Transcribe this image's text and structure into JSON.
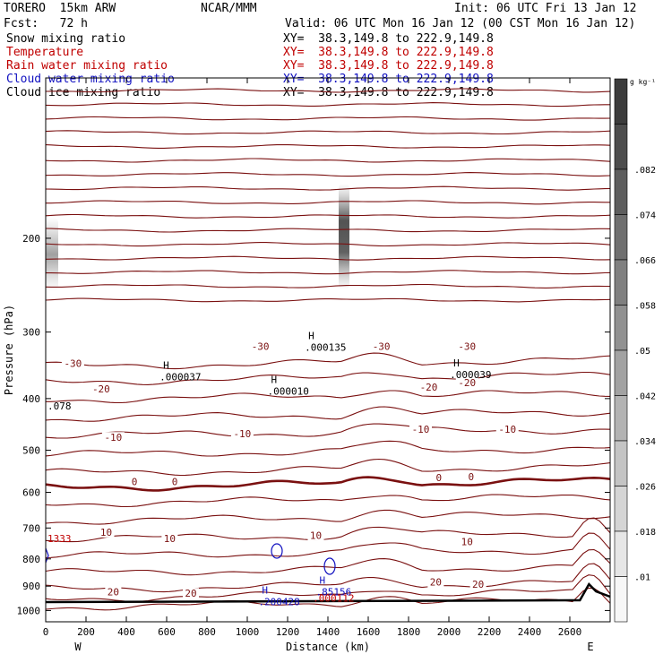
{
  "header": {
    "model": "TORERO  15km ARW",
    "org": "NCAR/MMM",
    "init": "Init: 06 UTC Fri 13 Jan 12",
    "fcst": "Fcst:   72 h",
    "valid": "Valid: 06 UTC Mon 16 Jan 12 (00 CST Mon 16 Jan 12)"
  },
  "fields": [
    {
      "name": "Snow mixing ratio",
      "xy": "XY=  38.3,149.8 to 222.9,149.8",
      "color": "#000000"
    },
    {
      "name": "Temperature",
      "xy": "XY=  38.3,149.8 to 222.9,149.8",
      "color": "#c00000"
    },
    {
      "name": "Rain water mixing ratio",
      "xy": "XY=  38.3,149.8 to 222.9,149.8",
      "color": "#c00000"
    },
    {
      "name": "Cloud water mixing ratio",
      "xy": "XY=  38.3,149.8 to 222.9,149.8",
      "color": "#1010c0"
    },
    {
      "name": "Cloud ice mixing ratio",
      "xy": "XY=  38.3,149.8 to 222.9,149.8",
      "color": "#000000"
    }
  ],
  "chart_data": {
    "type": "contour cross-section",
    "xlabel": "Distance (km)",
    "ylabel": "Pressure (hPa)",
    "xlim": [
      0,
      2800
    ],
    "ylim": [
      1050,
      100
    ],
    "x_ticks": [
      "0",
      "200",
      "400",
      "600",
      "800",
      "1000",
      "1200",
      "1400",
      "1600",
      "1800",
      "2000",
      "2200",
      "2400",
      "2600"
    ],
    "y_ticks": [
      "200",
      "300",
      "400",
      "500",
      "600",
      "700",
      "800",
      "900",
      "1000"
    ],
    "x_end_labels": {
      "left": "W",
      "right": "E"
    },
    "colorbar": {
      "unit": "g kg⁻¹",
      "labels": [
        ".01",
        ".018",
        ".026",
        ".034",
        ".042",
        ".05",
        ".058",
        ".066",
        ".074",
        ".082"
      ]
    },
    "temperature_labels": [
      {
        "text": "-30",
        "x": 135,
        "p": 345
      },
      {
        "text": "-30",
        "x": 1065,
        "p": 320
      },
      {
        "text": "-30",
        "x": 1665,
        "p": 320
      },
      {
        "text": "-30",
        "x": 2090,
        "p": 320
      },
      {
        "text": "-20",
        "x": 275,
        "p": 385
      },
      {
        "text": "-20",
        "x": 1900,
        "p": 382
      },
      {
        "text": "-20",
        "x": 2090,
        "p": 375
      },
      {
        "text": "-10",
        "x": 335,
        "p": 475
      },
      {
        "text": "-10",
        "x": 975,
        "p": 467
      },
      {
        "text": "-10",
        "x": 1860,
        "p": 458
      },
      {
        "text": "-10",
        "x": 2290,
        "p": 458
      },
      {
        "text": "0",
        "x": 440,
        "p": 575
      },
      {
        "text": "0",
        "x": 640,
        "p": 575
      },
      {
        "text": "0",
        "x": 1950,
        "p": 565
      },
      {
        "text": "0",
        "x": 2110,
        "p": 563
      },
      {
        "text": "10",
        "x": 300,
        "p": 715
      },
      {
        "text": "10",
        "x": 615,
        "p": 735
      },
      {
        "text": "10",
        "x": 1340,
        "p": 725
      },
      {
        "text": "10",
        "x": 2090,
        "p": 745
      },
      {
        "text": "20",
        "x": 335,
        "p": 925
      },
      {
        "text": "20",
        "x": 720,
        "p": 932
      },
      {
        "text": "20",
        "x": 1935,
        "p": 888
      },
      {
        "text": "20",
        "x": 2145,
        "p": 895
      }
    ],
    "extrema": [
      {
        "mark": "H",
        "value": ".000037",
        "x": 565,
        "p": 367,
        "color": "#000000"
      },
      {
        "mark": "H",
        "value": ".000010",
        "x": 1100,
        "p": 390,
        "color": "#000000"
      },
      {
        "mark": "H",
        "value": ".000135",
        "x": 1285,
        "p": 323,
        "color": "#000000"
      },
      {
        "mark": "H",
        "value": ".000039",
        "x": 2005,
        "p": 363,
        "color": "#000000"
      },
      {
        "mark": "",
        "value": ".078",
        "x": 0,
        "p": 416,
        "color": "#000000"
      },
      {
        "mark": "",
        "value": "1333",
        "x": 0,
        "p": 738,
        "color": "#c00000"
      },
      {
        "mark": "H",
        "value": ".200428",
        "x": 1055,
        "p": 970,
        "color": "#1010c0"
      },
      {
        "mark": "H",
        "value": ".85156",
        "x": 1340,
        "p": 930,
        "color": "#1010c0"
      },
      {
        "mark": "",
        "value": ".000112",
        "x": 1325,
        "p": 955,
        "color": "#c00000"
      }
    ]
  }
}
